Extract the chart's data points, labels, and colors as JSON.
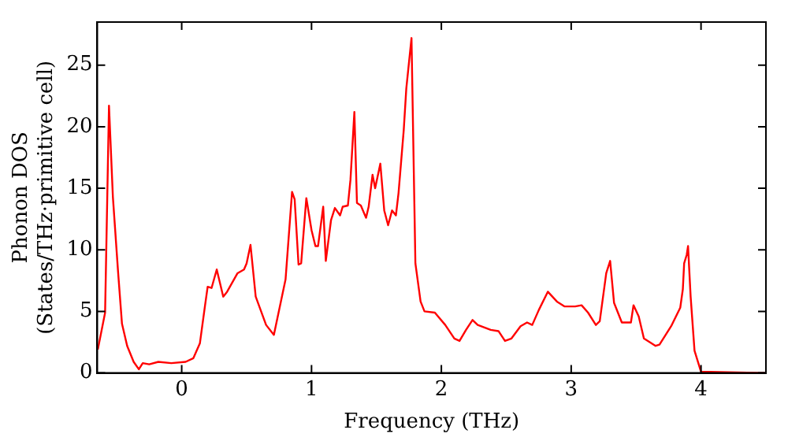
{
  "chart_data": {
    "type": "line",
    "xlabel": "Frequency (THz)",
    "ylabel": "Phonon DOS\n(States/THz·primitive cell)",
    "xlim": [
      -0.65,
      4.5
    ],
    "ylim": [
      0,
      28.5
    ],
    "xticks": [
      0,
      1,
      2,
      3,
      4
    ],
    "yticks": [
      0,
      5,
      10,
      15,
      20,
      25
    ],
    "grid": false,
    "legend": false,
    "marker": "none",
    "line_style": "solid",
    "series": [
      {
        "color": "#ff0000",
        "x": [
          -0.646,
          -0.59,
          -0.56,
          -0.53,
          -0.49,
          -0.46,
          -0.42,
          -0.37,
          -0.33,
          -0.3,
          -0.25,
          -0.18,
          -0.08,
          0.03,
          0.09,
          0.14,
          0.18,
          0.2,
          0.23,
          0.27,
          0.32,
          0.35,
          0.43,
          0.48,
          0.5,
          0.53,
          0.57,
          0.65,
          0.71,
          0.8,
          0.85,
          0.87,
          0.9,
          0.92,
          0.96,
          1.0,
          1.03,
          1.05,
          1.09,
          1.11,
          1.15,
          1.18,
          1.22,
          1.24,
          1.28,
          1.3,
          1.33,
          1.35,
          1.38,
          1.42,
          1.44,
          1.47,
          1.49,
          1.53,
          1.56,
          1.59,
          1.62,
          1.65,
          1.67,
          1.71,
          1.73,
          1.77,
          1.8,
          1.84,
          1.87,
          1.95,
          2.03,
          2.1,
          2.14,
          2.19,
          2.24,
          2.28,
          2.38,
          2.44,
          2.49,
          2.54,
          2.61,
          2.66,
          2.7,
          2.75,
          2.82,
          2.89,
          2.95,
          3.03,
          3.08,
          3.13,
          3.19,
          3.22,
          3.27,
          3.3,
          3.33,
          3.39,
          3.46,
          3.48,
          3.52,
          3.56,
          3.65,
          3.68,
          3.77,
          3.84,
          3.86,
          3.87,
          3.89,
          3.9,
          3.92,
          3.95,
          4.0,
          4.5
        ],
        "values": [
          1.9,
          4.9,
          21.7,
          14.3,
          8.2,
          4,
          2.2,
          0.9,
          0.3,
          0.8,
          0.7,
          0.9,
          0.8,
          0.9,
          1.2,
          2.4,
          5.5,
          7,
          6.9,
          8.4,
          6.2,
          6.6,
          8.1,
          8.4,
          8.9,
          10.4,
          6.2,
          3.9,
          3.1,
          7.6,
          14.7,
          14.1,
          8.8,
          8.9,
          14.2,
          11.6,
          10.3,
          10.3,
          13.5,
          9.1,
          12.4,
          13.4,
          12.8,
          13.5,
          13.6,
          15.7,
          21.2,
          13.8,
          13.6,
          12.6,
          13.5,
          16.1,
          15,
          17,
          13.2,
          12,
          13.2,
          12.8,
          14.6,
          19.7,
          23.1,
          27.2,
          8.9,
          5.8,
          5,
          4.9,
          3.9,
          2.8,
          2.6,
          3.5,
          4.3,
          3.9,
          3.5,
          3.4,
          2.6,
          2.8,
          3.8,
          4.1,
          3.9,
          5.1,
          6.6,
          5.8,
          5.4,
          5.4,
          5.5,
          4.9,
          3.9,
          4.2,
          8.1,
          9.1,
          5.7,
          4.1,
          4.1,
          5.5,
          4.6,
          2.8,
          2.2,
          2.3,
          3.8,
          5.3,
          6.8,
          8.9,
          9.6,
          10.3,
          6.2,
          1.8,
          0.1,
          0
        ]
      }
    ]
  }
}
